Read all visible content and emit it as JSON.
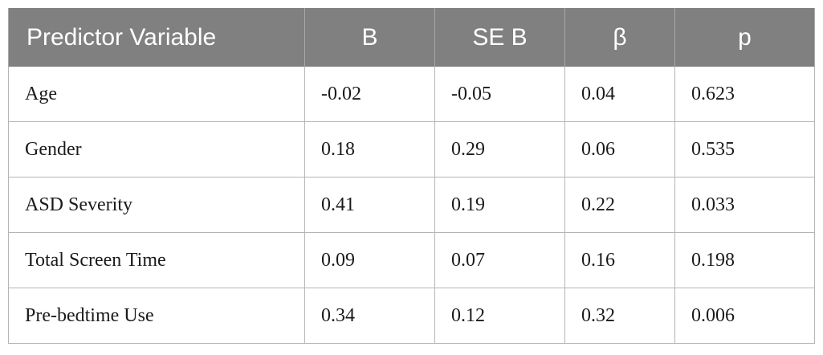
{
  "table": {
    "headers": [
      "Predictor Variable",
      "B",
      "SE B",
      "β",
      "p"
    ],
    "rows": [
      [
        "Age",
        "-0.02",
        "-0.05",
        "0.04",
        "0.623"
      ],
      [
        "Gender",
        "0.18",
        "0.29",
        "0.06",
        "0.535"
      ],
      [
        "ASD Severity",
        "0.41",
        "0.19",
        "0.22",
        "0.033"
      ],
      [
        "Total Screen Time",
        "0.09",
        "0.07",
        "0.16",
        "0.198"
      ],
      [
        "Pre-bedtime Use",
        "0.34",
        "0.12",
        "0.32",
        "0.006"
      ]
    ]
  }
}
